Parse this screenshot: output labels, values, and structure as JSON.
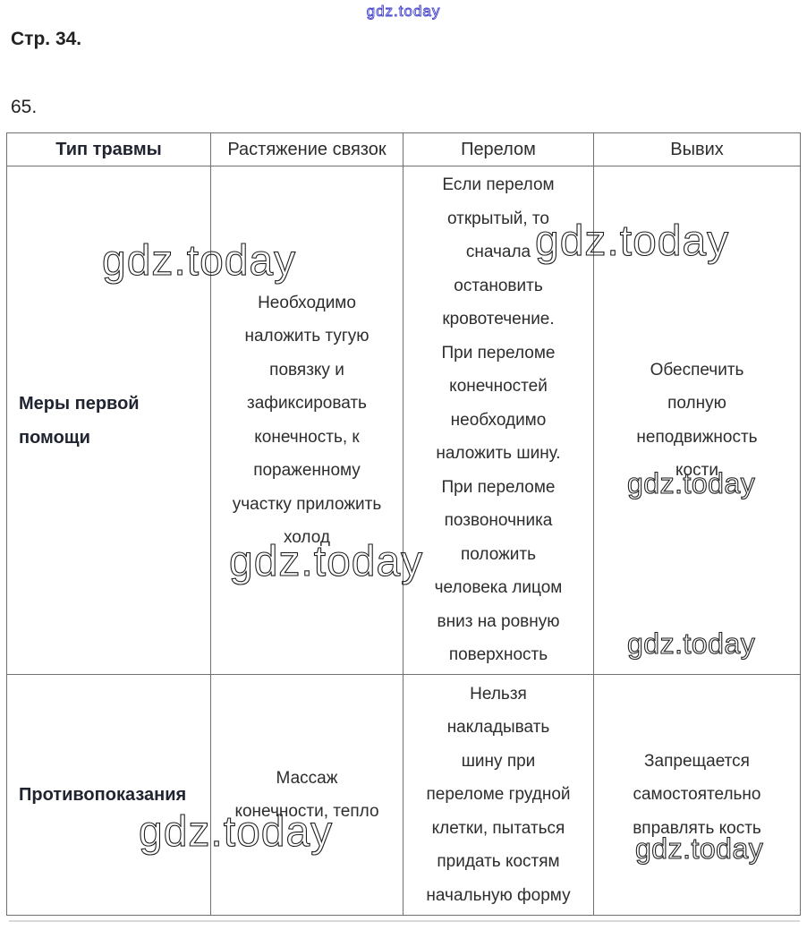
{
  "page": {
    "page_label": "Стр. 34.",
    "exercise_number": "65."
  },
  "watermarks": {
    "link_text": "gdz.today",
    "text": "gdz.today",
    "color_link": "#3e3ecd",
    "color_gray": "#222222"
  },
  "table": {
    "headers": [
      "Тип травмы",
      "Растяжение связок",
      "Перелом",
      "Вывих"
    ],
    "rows": [
      {
        "label": "Меры первой помощи",
        "cells": [
          "Необходимо\nналожить тугую\nповязку и\nзафиксировать\nконечность, к\nпораженному\nучастку приложить\nхолод",
          "Если перелом\nоткрытый, то\nсначала\nостановить\nкровотечение.\nПри переломе\nконечностей\nнеобходимо\nналожить шину.\nПри переломе\nпозвоночника\nположить\nчеловека лицом\nвниз на ровную\nповерхность",
          "Обеспечить\nполную\nнеподвижность\nкости"
        ]
      },
      {
        "label": "Противопоказания",
        "cells": [
          "Массаж\nконечности, тепло",
          "Нельзя\nнакладывать\nшину при\nпереломе грудной\nклетки, пытаться\nпридать костям\nначальную форму",
          "Запрещается\nсамостоятельно\nвправлять кость"
        ]
      }
    ]
  }
}
